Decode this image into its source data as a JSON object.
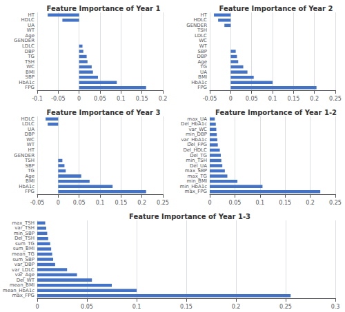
{
  "chart_data": [
    {
      "type": "bar",
      "orientation": "horizontal",
      "title": "Feature Importance of Year 1",
      "categories": [
        "HT",
        "HDLC",
        "UA",
        "WT",
        "Age",
        "GENDER",
        "LDLC",
        "DBP",
        "TG",
        "TSH",
        "WC",
        "BMI",
        "SBP",
        "HbA1c",
        "FPG"
      ],
      "values": [
        -0.075,
        -0.04,
        0.0,
        0.0,
        0.0,
        0.0,
        0.008,
        0.01,
        0.018,
        0.02,
        0.03,
        0.033,
        0.045,
        0.09,
        0.16
      ],
      "color": "#4472c4",
      "xlim": [
        -0.1,
        0.2
      ],
      "xticks": [
        -0.1,
        -0.05,
        0,
        0.05,
        0.1,
        0.15,
        0.2
      ],
      "grid": true
    },
    {
      "type": "bar",
      "orientation": "horizontal",
      "title": "Feature Importance of Year 2",
      "categories": [
        "HT",
        "HDLC",
        "GENDER",
        "TSH",
        "LDLC",
        "WC",
        "WT",
        "SBP",
        "DBP",
        "Age",
        "TG",
        "UA",
        "BMI",
        "HbA1c",
        "FPG"
      ],
      "values": [
        -0.04,
        -0.03,
        -0.015,
        0.0,
        0.0,
        0.0,
        0.0,
        0.012,
        0.015,
        0.018,
        0.03,
        0.04,
        0.055,
        0.1,
        0.205
      ],
      "color": "#4472c4",
      "xlim": [
        -0.05,
        0.25
      ],
      "xticks": [
        -0.05,
        0,
        0.05,
        0.1,
        0.15,
        0.2,
        0.25
      ],
      "grid": true
    },
    {
      "type": "bar",
      "orientation": "horizontal",
      "title": "Feature Importance of Year 3",
      "categories": [
        "HDLC",
        "LDLC",
        "UA",
        "DBP",
        "WC",
        "WT",
        "HT",
        "GENDER",
        "TSH",
        "SBP",
        "TG",
        "Age",
        "BMI",
        "HbA1c",
        "FPG"
      ],
      "values": [
        -0.03,
        -0.025,
        0.0,
        0.0,
        0.0,
        0.0,
        0.0,
        0.0,
        0.01,
        0.015,
        0.018,
        0.055,
        0.075,
        0.13,
        0.21
      ],
      "color": "#4472c4",
      "xlim": [
        -0.05,
        0.25
      ],
      "xticks": [
        -0.05,
        0,
        0.05,
        0.1,
        0.15,
        0.2,
        0.25
      ],
      "grid": true
    },
    {
      "type": "bar",
      "orientation": "horizontal",
      "title": "Feature Importance of Year 1-2",
      "categories": [
        "max_UA",
        "Del_HbA1c",
        "var_WC",
        "min_DBP",
        "var_HbA1c",
        "Del_FPG",
        "Del_HDLC",
        "Del_TG",
        "min_TSH",
        "Del_UA",
        "max_SBP",
        "max_TG",
        "min_BMI",
        "min_HbA1c",
        "max_FPG"
      ],
      "values": [
        0.01,
        0.012,
        0.013,
        0.014,
        0.015,
        0.016,
        0.02,
        0.022,
        0.023,
        0.025,
        0.03,
        0.035,
        0.055,
        0.105,
        0.22
      ],
      "color": "#4472c4",
      "xlim": [
        0,
        0.25
      ],
      "xticks": [
        0,
        0.05,
        0.1,
        0.15,
        0.2,
        0.25
      ],
      "grid": true
    },
    {
      "type": "bar",
      "orientation": "horizontal",
      "title": "Feature Importance of Year 1-3",
      "categories": [
        "max_TSH",
        "var_TSH",
        "min_SBP",
        "Del_TSH",
        "sum_TG",
        "sum_BMI",
        "mean_TG",
        "sum_SBP",
        "var_DBP",
        "var_LDLC",
        "var_Age",
        "Del_WT",
        "mean_BMI",
        "mean_HbA1c",
        "max_FPG"
      ],
      "values": [
        0.008,
        0.009,
        0.01,
        0.011,
        0.013,
        0.014,
        0.015,
        0.016,
        0.018,
        0.03,
        0.04,
        0.055,
        0.075,
        0.1,
        0.255
      ],
      "color": "#4472c4",
      "xlim": [
        0,
        0.3
      ],
      "xticks": [
        0,
        0.05,
        0.1,
        0.15,
        0.2,
        0.25,
        0.3
      ],
      "grid": true
    }
  ]
}
